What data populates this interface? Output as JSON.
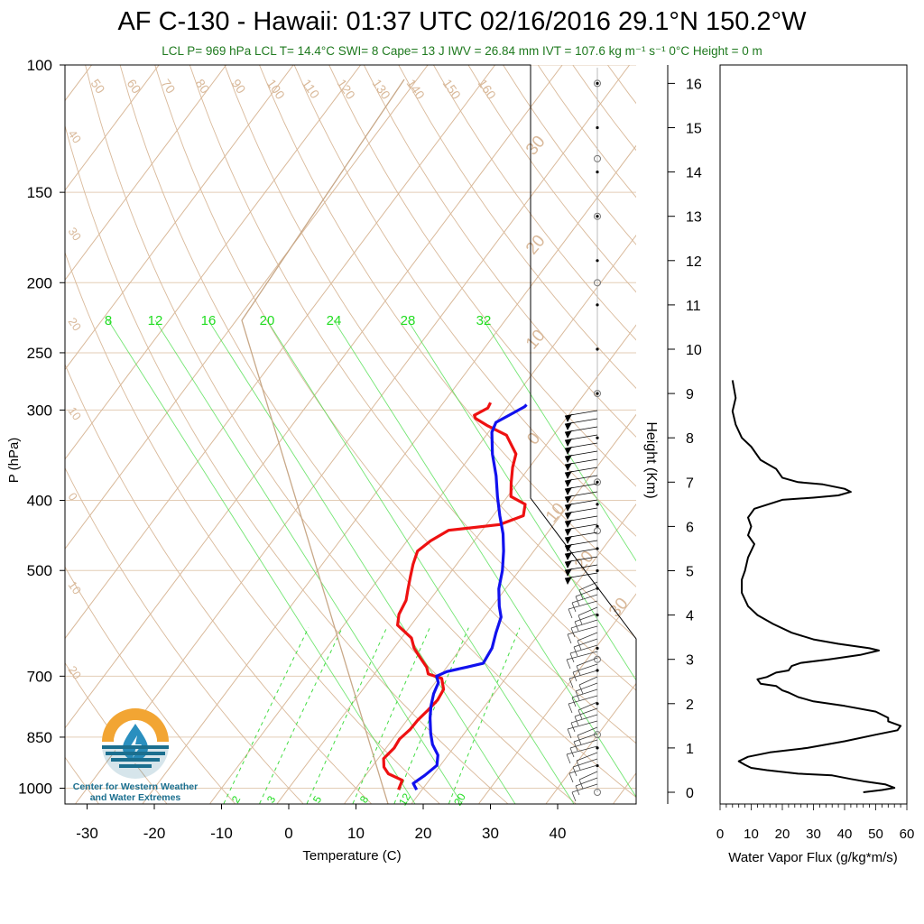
{
  "title": "AF C-130 - Hawaii: 01:37 UTC 02/16/2016  29.1°N 150.2°W",
  "subtitle": "LCL P= 969 hPa  LCL T= 14.4°C  SWI= 8  Cape= 13 J  IWV = 26.84 mm  IVT = 107.6 kg m⁻¹ s⁻¹  0°C Height = 0 m",
  "logo": {
    "line1": "Center for Western Weather",
    "line2": "and Water Extremes"
  },
  "colors": {
    "temperature": "#ee1111",
    "dewpoint": "#1111ee",
    "isotherm": "#d9b99a",
    "mixing_ratio": "#44dd44",
    "pressure_line": "#e3cdb6",
    "flux": "#000000"
  },
  "chart_data": [
    {
      "type": "line",
      "title": "AF C-130 - Hawaii: 01:37 UTC 02/16/2016  29.1°N 150.2°W",
      "xlabel": "Temperature (C)",
      "ylabel": "P (hPa)",
      "y_scale": "log",
      "xlim": [
        -35,
        50
      ],
      "ylim": [
        1050,
        100
      ],
      "x_ticks": [
        "-30",
        "-20",
        "-10",
        "0",
        "10",
        "20",
        "30",
        "40"
      ],
      "y_ticks": [
        "100",
        "150",
        "200",
        "250",
        "300",
        "400",
        "500",
        "700",
        "850",
        "1000"
      ],
      "right_axis": {
        "label": "Height (Km)",
        "ticks": [
          "0",
          "1",
          "2",
          "3",
          "4",
          "5",
          "6",
          "7",
          "8",
          "9",
          "10",
          "11",
          "12",
          "13",
          "14",
          "15",
          "16"
        ]
      },
      "isotherm_labels": [
        "50",
        "60",
        "70",
        "80",
        "90",
        "100",
        "110",
        "120",
        "130",
        "140",
        "150",
        "160"
      ],
      "isotherm_left_labels": [
        "40",
        "30",
        "20",
        "10",
        "0",
        "10",
        "20"
      ],
      "mixing_ratio_top_labels": [
        "8",
        "12",
        "16",
        "20",
        "24",
        "28",
        "32"
      ],
      "mixing_ratio_bottom_labels": [
        "2",
        "3",
        "5",
        "8",
        "12",
        "20"
      ],
      "adiabat_right_labels": [
        "30",
        "20",
        "10",
        "0",
        "10",
        "20",
        "30"
      ],
      "series": [
        {
          "name": "Temperature",
          "points": [
            [
              16.5,
              1005
            ],
            [
              16.0,
              975
            ],
            [
              13.2,
              955
            ],
            [
              11.8,
              935
            ],
            [
              10.8,
              910
            ],
            [
              11.2,
              880
            ],
            [
              11.0,
              855
            ],
            [
              11.5,
              830
            ],
            [
              11.6,
              805
            ],
            [
              12.0,
              780
            ],
            [
              12.3,
              755
            ],
            [
              12.0,
              730
            ],
            [
              10.5,
              705
            ],
            [
              8.0,
              695
            ],
            [
              7.0,
              680
            ],
            [
              5.0,
              660
            ],
            [
              3.0,
              640
            ],
            [
              1.5,
              620
            ],
            [
              -2.0,
              595
            ],
            [
              -3.0,
              575
            ],
            [
              -3.5,
              550
            ],
            [
              -4.5,
              530
            ],
            [
              -5.5,
              510
            ],
            [
              -6.5,
              490
            ],
            [
              -7.3,
              470
            ],
            [
              -6.5,
              455
            ],
            [
              -5.0,
              440
            ],
            [
              2.0,
              432
            ],
            [
              4.5,
              420
            ],
            [
              3.5,
              405
            ],
            [
              0.5,
              395
            ],
            [
              -1.0,
              378
            ],
            [
              -2.5,
              360
            ],
            [
              -3.5,
              345
            ],
            [
              -7.0,
              325
            ],
            [
              -11.0,
              315
            ],
            [
              -13.5,
              308
            ],
            [
              -14.0,
              305
            ],
            [
              -12.8,
              298
            ],
            [
              -13.0,
              293
            ]
          ]
        },
        {
          "name": "Dewpoint",
          "points": [
            [
              19.2,
              1005
            ],
            [
              18.0,
              985
            ],
            [
              18.8,
              960
            ],
            [
              19.5,
              930
            ],
            [
              18.5,
              900
            ],
            [
              16.5,
              870
            ],
            [
              15.0,
              840
            ],
            [
              13.2,
              800
            ],
            [
              12.0,
              770
            ],
            [
              11.0,
              740
            ],
            [
              10.5,
              715
            ],
            [
              9.5,
              700
            ],
            [
              10.5,
              690
            ],
            [
              13.0,
              680
            ],
            [
              15.0,
              672
            ],
            [
              14.6,
              640
            ],
            [
              13.5,
              610
            ],
            [
              12.5,
              580
            ],
            [
              11.0,
              560
            ],
            [
              9.0,
              530
            ],
            [
              7.5,
              500
            ],
            [
              5.5,
              470
            ],
            [
              3.5,
              445
            ],
            [
              1.0,
              420
            ],
            [
              -1.5,
              395
            ],
            [
              -4.0,
              370
            ],
            [
              -7.0,
              345
            ],
            [
              -9.5,
              322
            ],
            [
              -10.0,
              312
            ],
            [
              -8.5,
              303
            ],
            [
              -7.5,
              297
            ],
            [
              -7.4,
              295
            ]
          ]
        }
      ]
    },
    {
      "type": "line",
      "xlabel": "Water Vapor Flux (g/kg*m/s)",
      "ylabel": "",
      "xlim": [
        0,
        60
      ],
      "ylim": [
        0,
        16.5
      ],
      "x_ticks": [
        "0",
        "10",
        "20",
        "30",
        "40",
        "50",
        "60"
      ],
      "series": [
        {
          "name": "Water Vapor Flux",
          "points": [
            [
              46,
              0.0
            ],
            [
              52,
              0.05
            ],
            [
              56,
              0.1
            ],
            [
              53,
              0.18
            ],
            [
              46,
              0.25
            ],
            [
              42,
              0.3
            ],
            [
              36,
              0.38
            ],
            [
              25,
              0.42
            ],
            [
              15,
              0.5
            ],
            [
              10,
              0.55
            ],
            [
              8,
              0.62
            ],
            [
              6,
              0.7
            ],
            [
              9,
              0.8
            ],
            [
              16,
              0.9
            ],
            [
              28,
              1.0
            ],
            [
              40,
              1.15
            ],
            [
              50,
              1.3
            ],
            [
              57,
              1.4
            ],
            [
              58,
              1.5
            ],
            [
              54,
              1.6
            ],
            [
              54,
              1.68
            ],
            [
              50,
              1.82
            ],
            [
              40,
              1.95
            ],
            [
              30,
              2.05
            ],
            [
              25,
              2.15
            ],
            [
              22,
              2.25
            ],
            [
              20,
              2.3
            ],
            [
              18,
              2.4
            ],
            [
              13,
              2.45
            ],
            [
              12,
              2.55
            ],
            [
              15,
              2.6
            ],
            [
              18,
              2.7
            ],
            [
              22,
              2.75
            ],
            [
              23,
              2.85
            ],
            [
              26,
              2.92
            ],
            [
              35,
              3.0
            ],
            [
              45,
              3.1
            ],
            [
              51,
              3.2
            ],
            [
              48,
              3.25
            ],
            [
              38,
              3.35
            ],
            [
              30,
              3.45
            ],
            [
              23,
              3.6
            ],
            [
              17,
              3.8
            ],
            [
              12,
              4.0
            ],
            [
              9,
              4.2
            ],
            [
              7,
              4.5
            ],
            [
              7,
              4.8
            ],
            [
              8,
              5.0
            ],
            [
              9,
              5.3
            ],
            [
              11,
              5.6
            ],
            [
              9,
              5.8
            ],
            [
              10,
              6.0
            ],
            [
              9,
              6.2
            ],
            [
              11,
              6.4
            ],
            [
              20,
              6.6
            ],
            [
              30,
              6.65
            ],
            [
              38,
              6.7
            ],
            [
              42,
              6.78
            ],
            [
              40,
              6.85
            ],
            [
              33,
              6.95
            ],
            [
              25,
              7.0
            ],
            [
              20,
              7.1
            ],
            [
              18,
              7.3
            ],
            [
              13,
              7.5
            ],
            [
              10,
              7.8
            ],
            [
              7,
              8.0
            ],
            [
              5,
              8.3
            ],
            [
              4,
              8.6
            ],
            [
              5,
              8.9
            ],
            [
              4,
              9.3
            ]
          ]
        }
      ]
    }
  ]
}
